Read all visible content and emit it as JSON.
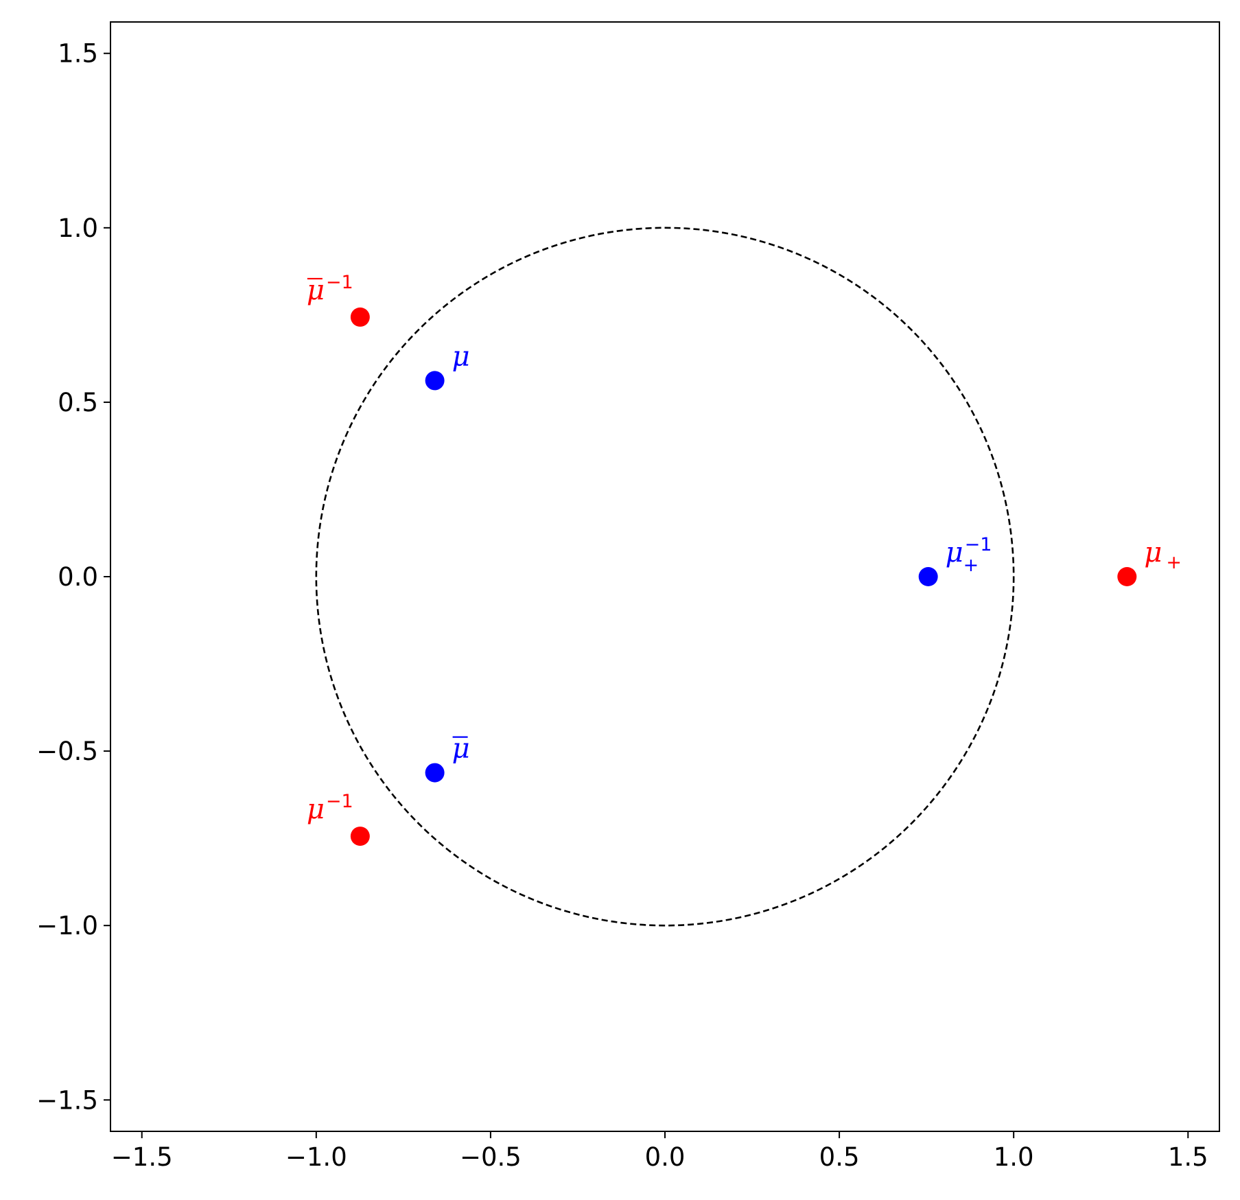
{
  "chart_data": {
    "type": "scatter",
    "title": "",
    "xlabel": "",
    "ylabel": "",
    "xlim": [
      -1.59,
      1.59
    ],
    "ylim": [
      -1.59,
      1.59
    ],
    "x_ticks": [
      -1.5,
      -1.0,
      -0.5,
      0.0,
      0.5,
      1.0,
      1.5
    ],
    "y_ticks": [
      -1.5,
      -1.0,
      -0.5,
      0.0,
      0.5,
      1.0,
      1.5
    ],
    "x_tick_labels": [
      "−1.5",
      "−1.0",
      "−0.5",
      "0.0",
      "0.5",
      "1.0",
      "1.5"
    ],
    "y_tick_labels": [
      "−1.5",
      "−1.0",
      "−0.5",
      "0.0",
      "0.5",
      "1.0",
      "1.5"
    ],
    "grid": false,
    "unit_circle": {
      "center": [
        0,
        0
      ],
      "radius": 1.0,
      "style": "dashed",
      "color": "#000000"
    },
    "points": [
      {
        "x": -0.66,
        "y": 0.562,
        "color": "#0000ff",
        "label": {
          "base": "μ",
          "bar": false,
          "sup": "",
          "sub": ""
        },
        "label_pos": "upper-right"
      },
      {
        "x": -0.66,
        "y": -0.562,
        "color": "#0000ff",
        "label": {
          "base": "μ",
          "bar": true,
          "sup": "",
          "sub": ""
        },
        "label_pos": "upper-right"
      },
      {
        "x": -0.874,
        "y": 0.744,
        "color": "#ff0000",
        "label": {
          "base": "μ",
          "bar": true,
          "sup": "−1",
          "sub": ""
        },
        "label_pos": "upper-left"
      },
      {
        "x": -0.874,
        "y": -0.744,
        "color": "#ff0000",
        "label": {
          "base": "μ",
          "bar": false,
          "sup": "−1",
          "sub": ""
        },
        "label_pos": "upper-left"
      },
      {
        "x": 0.755,
        "y": 0.0,
        "color": "#0000ff",
        "label": {
          "base": "μ",
          "bar": false,
          "sup": "−1",
          "sub": "+"
        },
        "label_pos": "upper-right"
      },
      {
        "x": 1.325,
        "y": 0.0,
        "color": "#ff0000",
        "label": {
          "base": "μ",
          "bar": false,
          "sup": "",
          "sub": "+"
        },
        "label_pos": "upper-right"
      }
    ]
  }
}
